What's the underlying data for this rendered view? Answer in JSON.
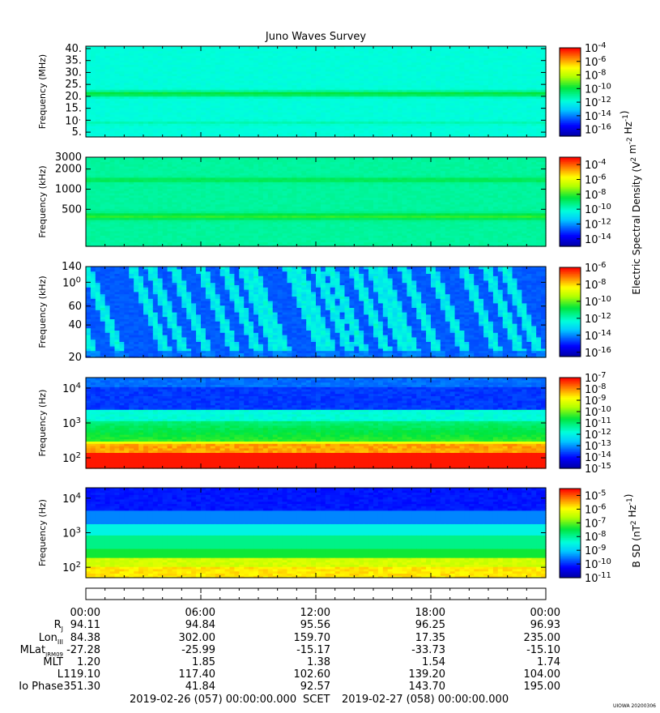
{
  "title": "Juno Waves Survey",
  "stamp": "UIOWA 20200306",
  "chart_data": [
    {
      "type": "heatmap",
      "ylabel": "Frequency (MHz)",
      "y_ticks": [
        "40.",
        "35.",
        "30.",
        "25.",
        "20.",
        "15.",
        "10.",
        "5."
      ],
      "y_tick_values": [
        40,
        35,
        30,
        25,
        20,
        15,
        10,
        5
      ],
      "ylim": [
        3,
        41
      ],
      "y_scale": "linear",
      "colorbar": {
        "ticks": [
          "10-4",
          "10-6",
          "10-8",
          "10-10",
          "10-12",
          "10-14",
          "10-16"
        ],
        "exponents": [
          -4,
          -6,
          -8,
          -10,
          -12,
          -14,
          -16
        ],
        "range_exp": [
          -17,
          -4
        ]
      }
    },
    {
      "type": "heatmap",
      "ylabel": "Frequency (kHz)",
      "y_ticks": [
        "3000",
        "2000",
        "1000",
        "500"
      ],
      "y_tick_values": [
        3000,
        2000,
        1000,
        500
      ],
      "ylim": [
        140,
        3000
      ],
      "y_scale": "log",
      "colorbar": {
        "ticks": [
          "10-4",
          "10-6",
          "10-8",
          "10-10",
          "10-12",
          "10-14"
        ],
        "exponents": [
          -4,
          -6,
          -8,
          -10,
          -12,
          -14
        ],
        "range_exp": [
          -15,
          -3
        ]
      }
    },
    {
      "type": "heatmap",
      "ylabel": "Frequency (kHz)",
      "y_ticks": [
        "140",
        "100",
        "60",
        "40",
        "20"
      ],
      "y_tick_values": [
        140,
        100,
        60,
        40,
        20
      ],
      "ylim": [
        20,
        140
      ],
      "y_scale": "log",
      "colorbar": {
        "ticks": [
          "10-6",
          "10-8",
          "10-10",
          "10-12",
          "10-14",
          "10-16"
        ],
        "exponents": [
          -6,
          -8,
          -10,
          -12,
          -14,
          -16
        ],
        "range_exp": [
          -16.5,
          -6
        ]
      }
    },
    {
      "type": "heatmap",
      "ylabel": "Frequency (Hz)",
      "y_ticks": [
        "104",
        "103",
        "102"
      ],
      "y_tick_values": [
        10000,
        1000,
        100
      ],
      "ylim": [
        50,
        20000
      ],
      "y_scale": "log",
      "colorbar": {
        "ticks": [
          "10-7",
          "10-8",
          "10-9",
          "10-10",
          "10-11",
          "10-12",
          "10-13",
          "10-14",
          "10-15"
        ],
        "exponents": [
          -7,
          -8,
          -9,
          -10,
          -11,
          -12,
          -13,
          -14,
          -15
        ],
        "range_exp": [
          -15,
          -7
        ]
      }
    },
    {
      "type": "heatmap",
      "ylabel": "Frequency (Hz)",
      "y_ticks": [
        "104",
        "103",
        "102"
      ],
      "y_tick_values": [
        10000,
        1000,
        100
      ],
      "ylim": [
        50,
        20000
      ],
      "y_scale": "log",
      "colorbar": {
        "ticks": [
          "10-5",
          "10-6",
          "10-7",
          "10-8",
          "10-9",
          "10-10",
          "10-11"
        ],
        "exponents": [
          -5,
          -6,
          -7,
          -8,
          -9,
          -10,
          -11
        ],
        "range_exp": [
          -11,
          -4.5
        ]
      }
    }
  ],
  "colorbar_labels": {
    "electric": "Electric Spectral Density (V2 m-2 Hz-1)",
    "magnetic": "B SD (nT2 Hz-1)"
  },
  "ephemeris": {
    "times": [
      "00:00",
      "06:00",
      "12:00",
      "18:00",
      "00:00"
    ],
    "rows": [
      {
        "label": "Rj",
        "values": [
          "94.11",
          "94.84",
          "95.56",
          "96.25",
          "96.93"
        ]
      },
      {
        "label": "LonIII",
        "values": [
          "84.38",
          "302.00",
          "159.70",
          "17.35",
          "235.00"
        ]
      },
      {
        "label": "MLatJRM09",
        "values": [
          "-27.28",
          "-25.99",
          "-15.17",
          "-33.73",
          "-15.10"
        ]
      },
      {
        "label": "MLT",
        "values": [
          "1.20",
          "1.85",
          "1.38",
          "1.54",
          "1.74"
        ]
      },
      {
        "label": "L",
        "values": [
          "119.10",
          "117.40",
          "102.60",
          "139.20",
          "104.00"
        ]
      },
      {
        "label": "Io Phase",
        "values": [
          "351.30",
          "41.84",
          "92.57",
          "143.70",
          "195.00"
        ]
      }
    ]
  },
  "footer": {
    "start": "2019-02-26 (057) 00:00:00.000",
    "scet": "SCET",
    "end": "2019-02-27 (058) 00:00:00.000"
  }
}
